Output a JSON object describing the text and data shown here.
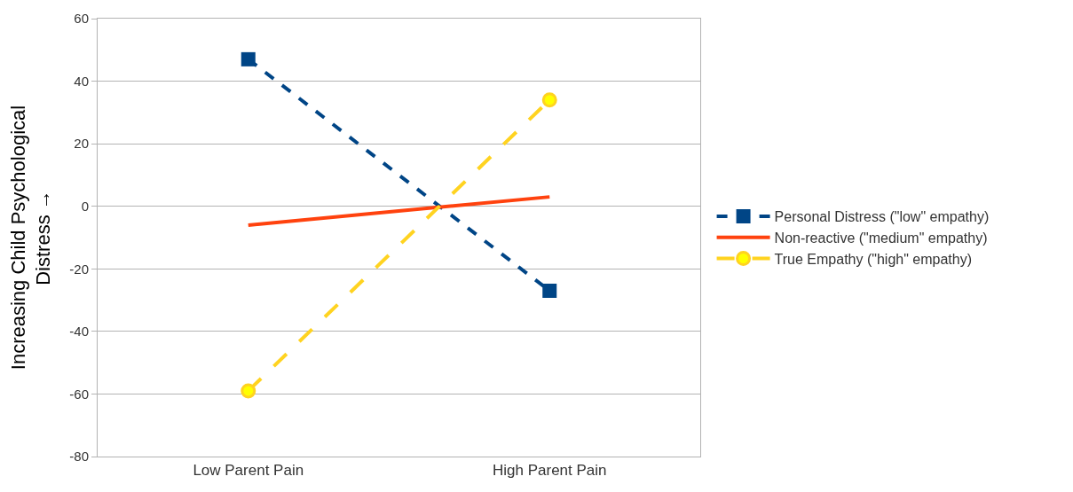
{
  "chart_data": {
    "type": "line",
    "ylabel": "Increasing Child Psychological\nDistress →",
    "categories": [
      "Low Parent Pain",
      "High Parent Pain"
    ],
    "series": [
      {
        "name": "Personal Distress (\"low\" empathy)",
        "color": "#004586",
        "values": [
          47,
          -27
        ],
        "marker": "square",
        "line_style": "dashed"
      },
      {
        "name": "Non-reactive (\"medium\" empathy)",
        "color": "#ff420e",
        "values": [
          -6,
          3
        ],
        "marker": "none",
        "line_style": "solid"
      },
      {
        "name": "True Empathy (\"high\" empathy)",
        "color": "#ffd320",
        "values": [
          -59,
          34
        ],
        "marker": "circle",
        "line_style": "dashed"
      }
    ],
    "ylim": [
      -80,
      60
    ],
    "yticks": [
      -80,
      -60,
      -40,
      -20,
      0,
      20,
      40,
      60
    ],
    "grid": "y",
    "legend": "right"
  }
}
